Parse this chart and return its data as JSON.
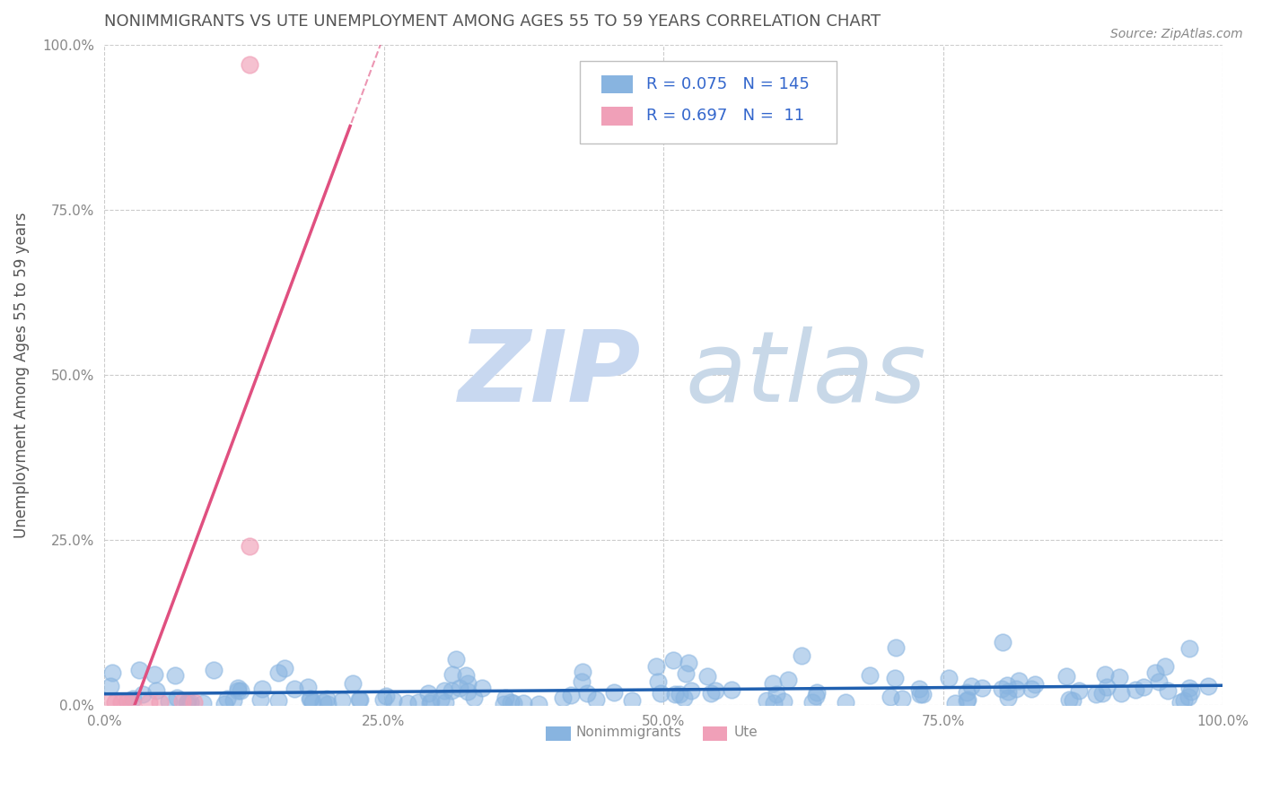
{
  "title": "NONIMMIGRANTS VS UTE UNEMPLOYMENT AMONG AGES 55 TO 59 YEARS CORRELATION CHART",
  "source": "Source: ZipAtlas.com",
  "xlabel": "",
  "ylabel": "Unemployment Among Ages 55 to 59 years",
  "xlim": [
    0.0,
    1.0
  ],
  "ylim": [
    0.0,
    1.0
  ],
  "xticks": [
    0.0,
    0.25,
    0.5,
    0.75,
    1.0
  ],
  "xticklabels": [
    "0.0%",
    "25.0%",
    "50.0%",
    "75.0%",
    "100.0%"
  ],
  "yticks": [
    0.0,
    0.25,
    0.5,
    0.75,
    1.0
  ],
  "yticklabels": [
    "0.0%",
    "25.0%",
    "50.0%",
    "75.0%",
    "100.0%"
  ],
  "nonimmigrant_color": "#88b4e0",
  "ute_color": "#f0a0b8",
  "nonimmigrant_line_color": "#2060b0",
  "ute_line_color": "#e05080",
  "R_nonimmigrant": 0.075,
  "N_nonimmigrant": 145,
  "R_ute": 0.697,
  "N_ute": 11,
  "background_color": "#ffffff",
  "grid_color": "#cccccc",
  "watermark_zip_color": "#c8d8f0",
  "watermark_atlas_color": "#c8d8e8",
  "title_color": "#555555",
  "axis_label_color": "#555555",
  "tick_color": "#888888",
  "legend_label_nonimmigrant": "Nonimmigrants",
  "legend_label_ute": "Ute",
  "legend_text_color": "#3366cc",
  "seed": 42
}
